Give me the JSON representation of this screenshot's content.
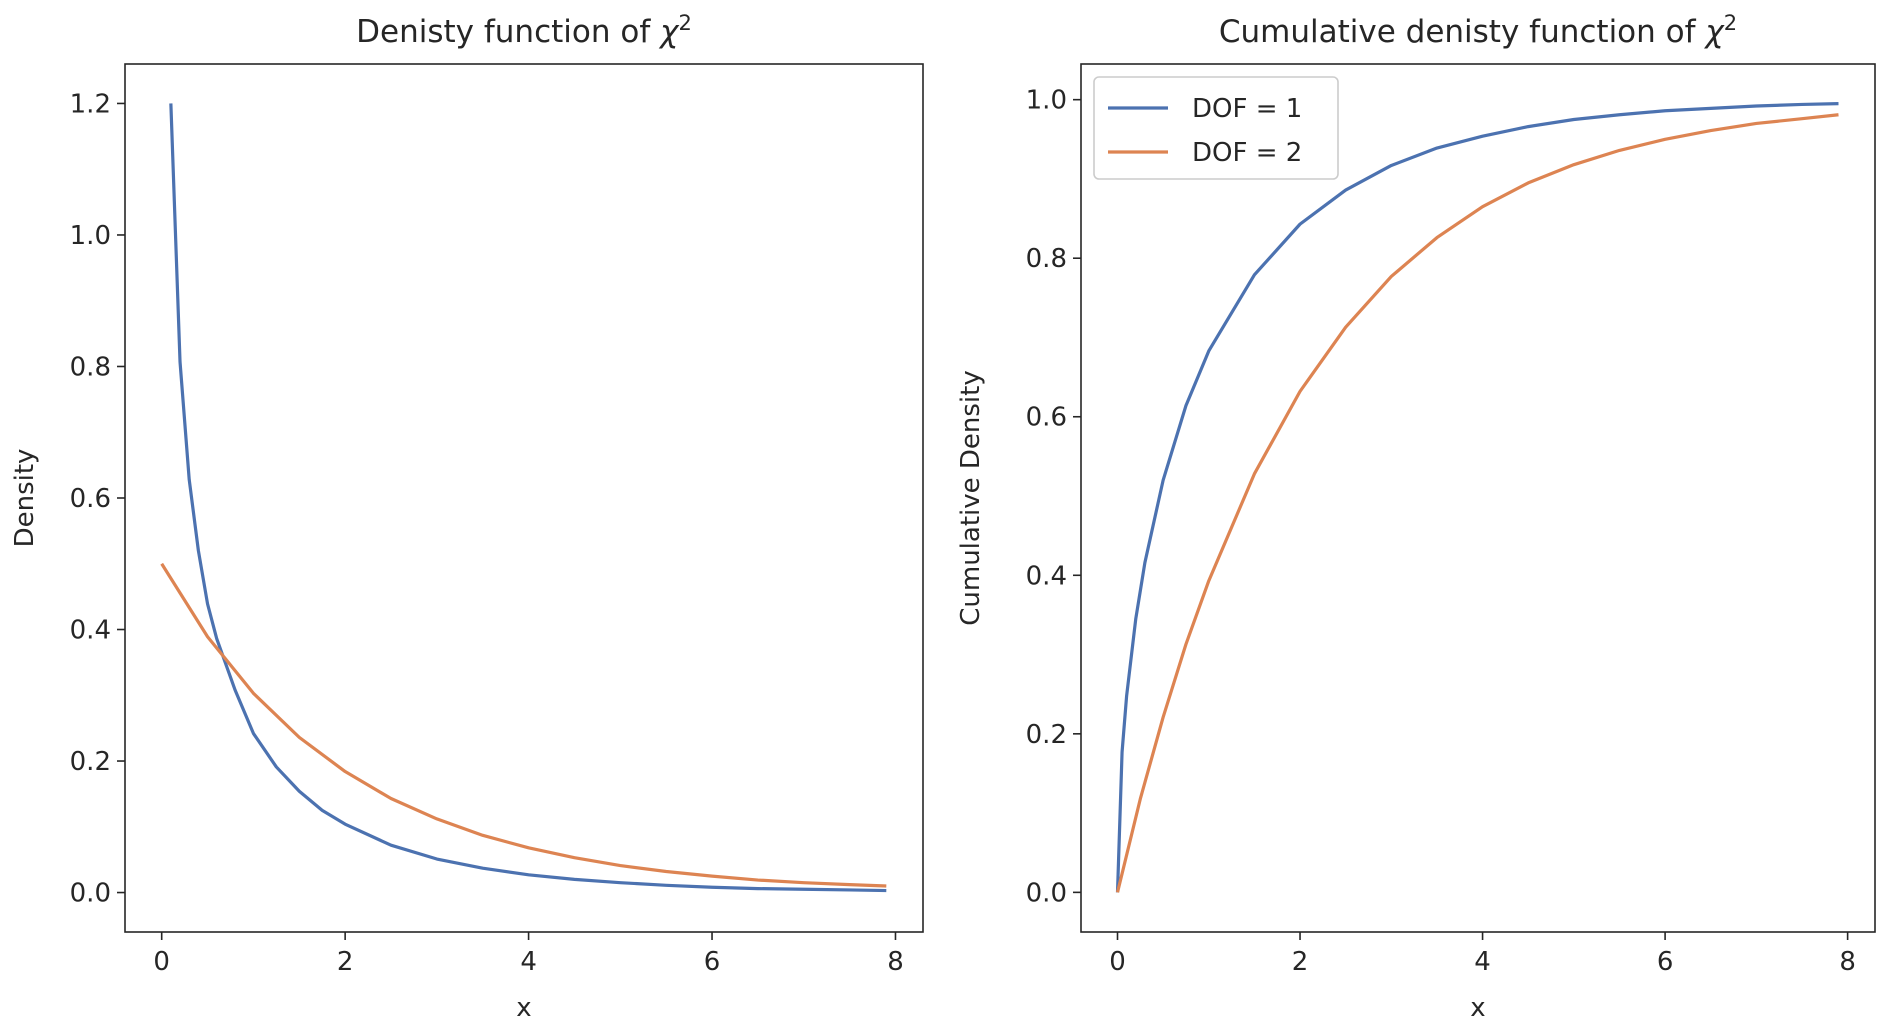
{
  "chart_data": [
    {
      "type": "line",
      "title_prefix": "Denisty function of ",
      "title_symbol": "χ",
      "title_sup": "2",
      "xlabel": "x",
      "ylabel": "Density",
      "xlim": [
        -0.4,
        8.3
      ],
      "ylim": [
        -0.06,
        1.26
      ],
      "xticks": [
        0,
        2,
        4,
        6,
        8
      ],
      "yticks": [
        0.0,
        0.2,
        0.4,
        0.6,
        0.8,
        1.0,
        1.2
      ],
      "legend": null,
      "series": [
        {
          "name": "DOF = 1",
          "color": "#4c72b0",
          "x": [
            0.1,
            0.2,
            0.3,
            0.4,
            0.5,
            0.6,
            0.8,
            1.0,
            1.25,
            1.5,
            1.75,
            2.0,
            2.5,
            3.0,
            3.5,
            4.0,
            4.5,
            5.0,
            5.5,
            6.0,
            6.5,
            7.0,
            7.5,
            7.9
          ],
          "y": [
            1.2,
            0.807,
            0.628,
            0.52,
            0.439,
            0.386,
            0.308,
            0.242,
            0.191,
            0.154,
            0.125,
            0.104,
            0.072,
            0.051,
            0.037,
            0.027,
            0.02,
            0.015,
            0.011,
            0.008,
            0.006,
            0.005,
            0.004,
            0.003
          ]
        },
        {
          "name": "DOF = 2",
          "color": "#dd8452",
          "x": [
            0.0,
            0.5,
            1.0,
            1.5,
            2.0,
            2.5,
            3.0,
            3.5,
            4.0,
            4.5,
            5.0,
            5.5,
            6.0,
            6.5,
            7.0,
            7.5,
            7.9
          ],
          "y": [
            0.5,
            0.389,
            0.303,
            0.236,
            0.184,
            0.143,
            0.112,
            0.087,
            0.068,
            0.053,
            0.041,
            0.032,
            0.025,
            0.019,
            0.015,
            0.012,
            0.01
          ]
        }
      ]
    },
    {
      "type": "line",
      "title_prefix": "Cumulative denisty function of ",
      "title_symbol": "χ",
      "title_sup": "2",
      "xlabel": "x",
      "ylabel": "Cumulative Density",
      "xlim": [
        -0.4,
        8.3
      ],
      "ylim": [
        -0.05,
        1.045
      ],
      "xticks": [
        0,
        2,
        4,
        6,
        8
      ],
      "yticks": [
        0.0,
        0.2,
        0.4,
        0.6,
        0.8,
        1.0
      ],
      "legend": "top-left",
      "series": [
        {
          "name": "DOF = 1",
          "color": "#4c72b0",
          "x": [
            0.0,
            0.05,
            0.1,
            0.2,
            0.3,
            0.5,
            0.75,
            1.0,
            1.5,
            2.0,
            2.5,
            3.0,
            3.5,
            4.0,
            4.5,
            5.0,
            5.5,
            6.0,
            6.5,
            7.0,
            7.5,
            7.9
          ],
          "y": [
            0.0,
            0.177,
            0.248,
            0.345,
            0.416,
            0.52,
            0.614,
            0.683,
            0.779,
            0.843,
            0.886,
            0.917,
            0.939,
            0.954,
            0.966,
            0.975,
            0.981,
            0.986,
            0.989,
            0.992,
            0.994,
            0.995
          ]
        },
        {
          "name": "DOF = 2",
          "color": "#dd8452",
          "x": [
            0.0,
            0.25,
            0.5,
            0.75,
            1.0,
            1.5,
            2.0,
            2.5,
            3.0,
            3.5,
            4.0,
            4.5,
            5.0,
            5.5,
            6.0,
            6.5,
            7.0,
            7.5,
            7.9
          ],
          "y": [
            0.0,
            0.118,
            0.221,
            0.313,
            0.393,
            0.528,
            0.632,
            0.713,
            0.777,
            0.826,
            0.865,
            0.895,
            0.918,
            0.936,
            0.95,
            0.961,
            0.97,
            0.976,
            0.981
          ]
        }
      ]
    }
  ]
}
